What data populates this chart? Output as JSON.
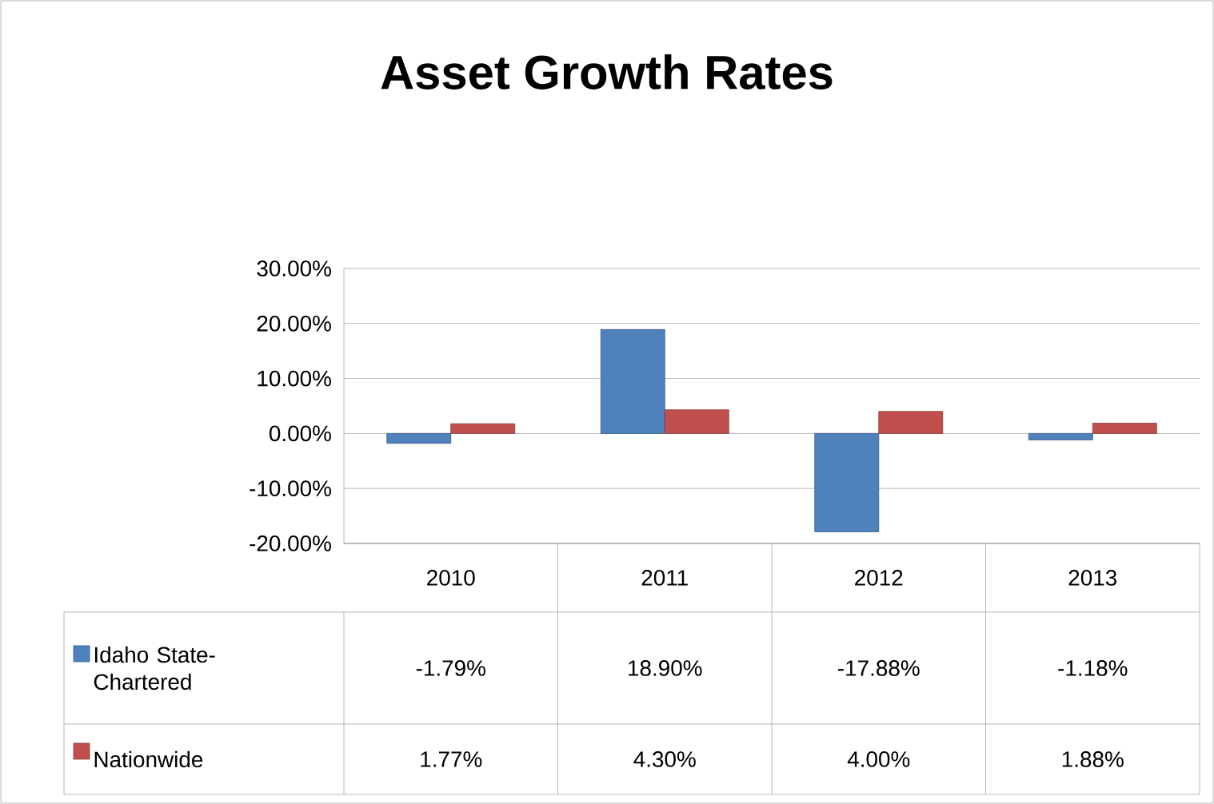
{
  "chart_data": {
    "type": "bar",
    "title": "Asset Growth Rates",
    "categories": [
      "2010",
      "2011",
      "2012",
      "2013"
    ],
    "series": [
      {
        "name": "Idaho State-Chartered",
        "color": "#4f81bd",
        "values": [
          -1.79,
          18.9,
          -17.88,
          -1.18
        ],
        "value_labels": [
          "-1.79%",
          "18.90%",
          "-17.88%",
          "-1.18%"
        ]
      },
      {
        "name": "Nationwide",
        "color": "#c0504d",
        "values": [
          1.77,
          4.3,
          4.0,
          1.88
        ],
        "value_labels": [
          "1.77%",
          "4.30%",
          "4.00%",
          "1.88%"
        ]
      }
    ],
    "ylim": [
      -20,
      30
    ],
    "yticks": [
      {
        "value": -20,
        "label": "-20.00%"
      },
      {
        "value": -10,
        "label": "-10.00%"
      },
      {
        "value": 0,
        "label": "0.00%"
      },
      {
        "value": 10,
        "label": "10.00%"
      },
      {
        "value": 20,
        "label": "20.00%"
      },
      {
        "value": 30,
        "label": "30.00%"
      }
    ],
    "grid": "y",
    "legend": "bottom"
  }
}
